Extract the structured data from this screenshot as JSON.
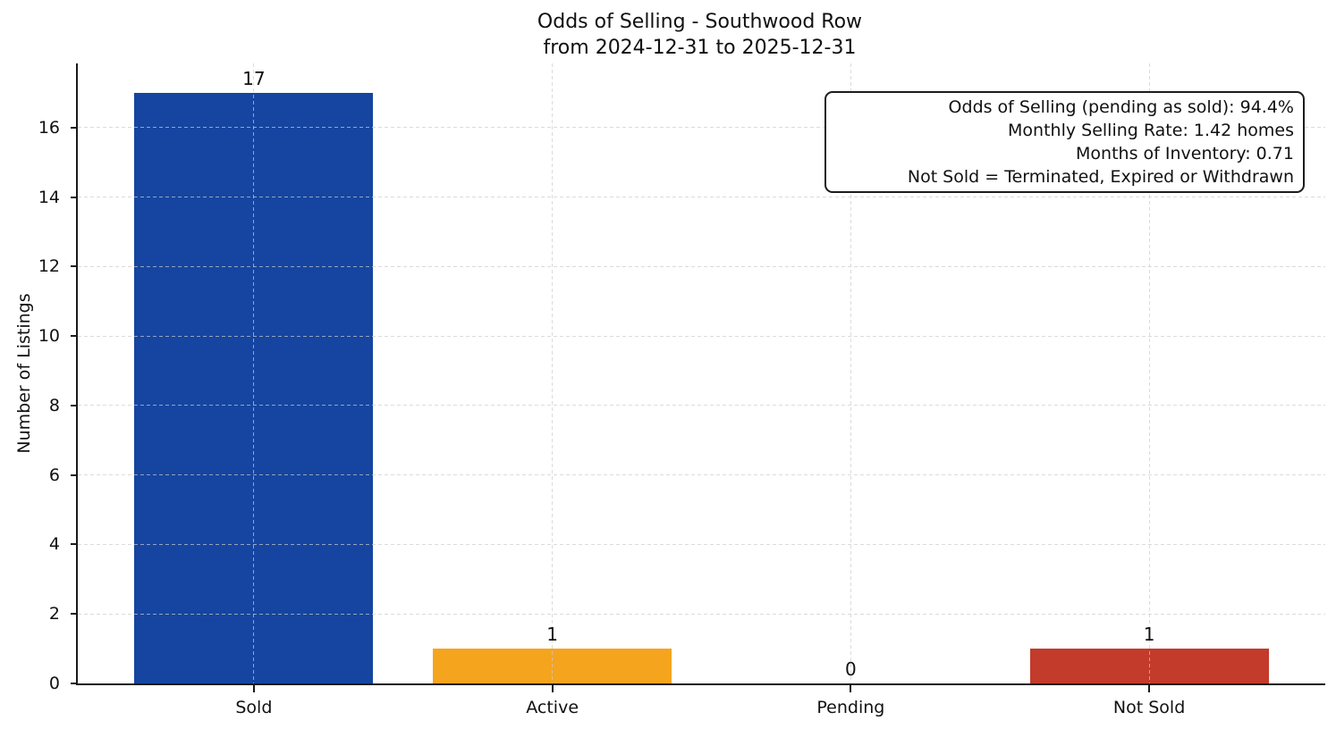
{
  "chart_data": {
    "type": "bar",
    "title": "Odds of Selling - Southwood Row",
    "subtitle": "from 2024-12-31 to 2025-12-31",
    "categories": [
      "Sold",
      "Active",
      "Pending",
      "Not Sold"
    ],
    "values": [
      17,
      1,
      0,
      1
    ],
    "bar_colors": [
      "#1545a0",
      "#f5a41e",
      null,
      "#c23b2b"
    ],
    "xlabel": "",
    "ylabel": "Number of Listings",
    "ylim": [
      0,
      17.85
    ],
    "yticks": [
      0,
      2,
      4,
      6,
      8,
      10,
      12,
      14,
      16
    ],
    "grid": "dashed, both axes, drawn over bars",
    "legend_position": "none",
    "annotation_box": {
      "position": "top-right",
      "lines": [
        "Odds of Selling (pending as sold): 94.4%",
        "Monthly Selling Rate: 1.42 homes",
        "Months of Inventory: 0.71",
        "Not Sold = Terminated, Expired or Withdrawn"
      ]
    }
  },
  "style": {
    "background": "#ffffff",
    "axis_color": "#1a1a1a",
    "grid_color": "#cccccc",
    "text_color": "#111111"
  }
}
